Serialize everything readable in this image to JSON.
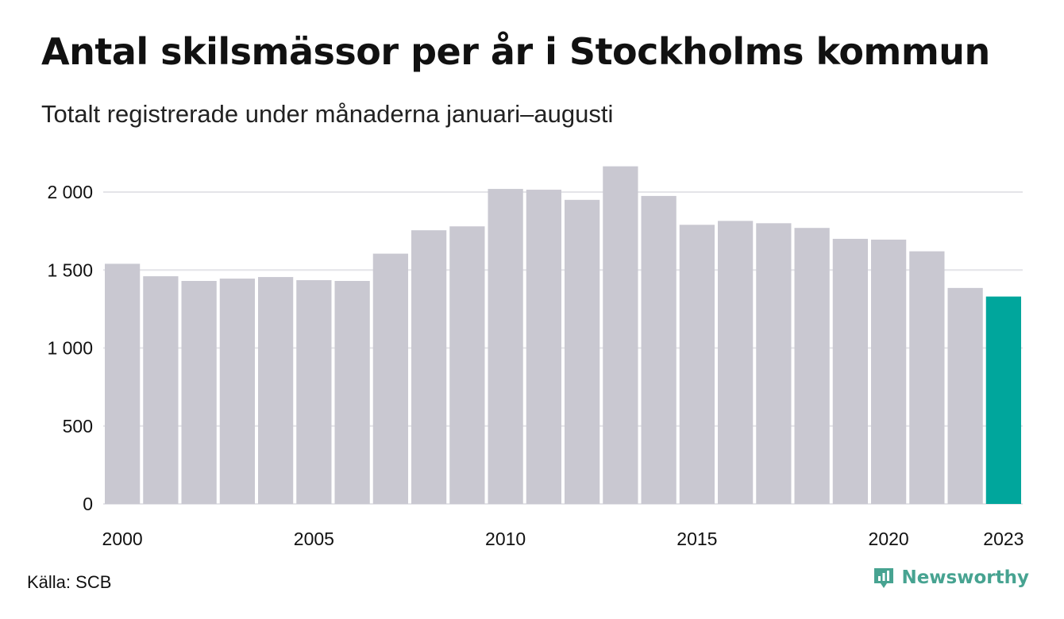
{
  "title": "Antal skilsmässor per år i Stockholms kommun",
  "subtitle": "Totalt registrerade under månaderna januari–augusti",
  "source": "Källa: SCB",
  "brand": {
    "name": "Newsworthy",
    "icon": "bar-chart-logo-icon",
    "color": "#47a391"
  },
  "colors": {
    "bar": "#c9c8d1",
    "highlight": "#00a69c",
    "grid": "#e4e4e8",
    "text": "#111111"
  },
  "chart_data": {
    "type": "bar",
    "categories": [
      "2000",
      "2001",
      "2002",
      "2003",
      "2004",
      "2005",
      "2006",
      "2007",
      "2008",
      "2009",
      "2010",
      "2011",
      "2012",
      "2013",
      "2014",
      "2015",
      "2016",
      "2017",
      "2018",
      "2019",
      "2020",
      "2021",
      "2022",
      "2023"
    ],
    "values": [
      1540,
      1460,
      1430,
      1445,
      1455,
      1435,
      1430,
      1605,
      1755,
      1780,
      2020,
      2015,
      1950,
      2165,
      1975,
      1790,
      1815,
      1800,
      1770,
      1700,
      1695,
      1620,
      1385,
      1330
    ],
    "highlight_category": "2023",
    "y_ticks": [
      0,
      500,
      1000,
      1500,
      2000
    ],
    "y_tick_labels": [
      "0",
      "500",
      "1 000",
      "1 500",
      "2 000"
    ],
    "x_tick_labels": [
      "2000",
      "2005",
      "2010",
      "2015",
      "2020",
      "2023"
    ],
    "ylim": [
      0,
      2200
    ],
    "xlabel": "",
    "ylabel": "",
    "grid": true,
    "legend": false
  }
}
